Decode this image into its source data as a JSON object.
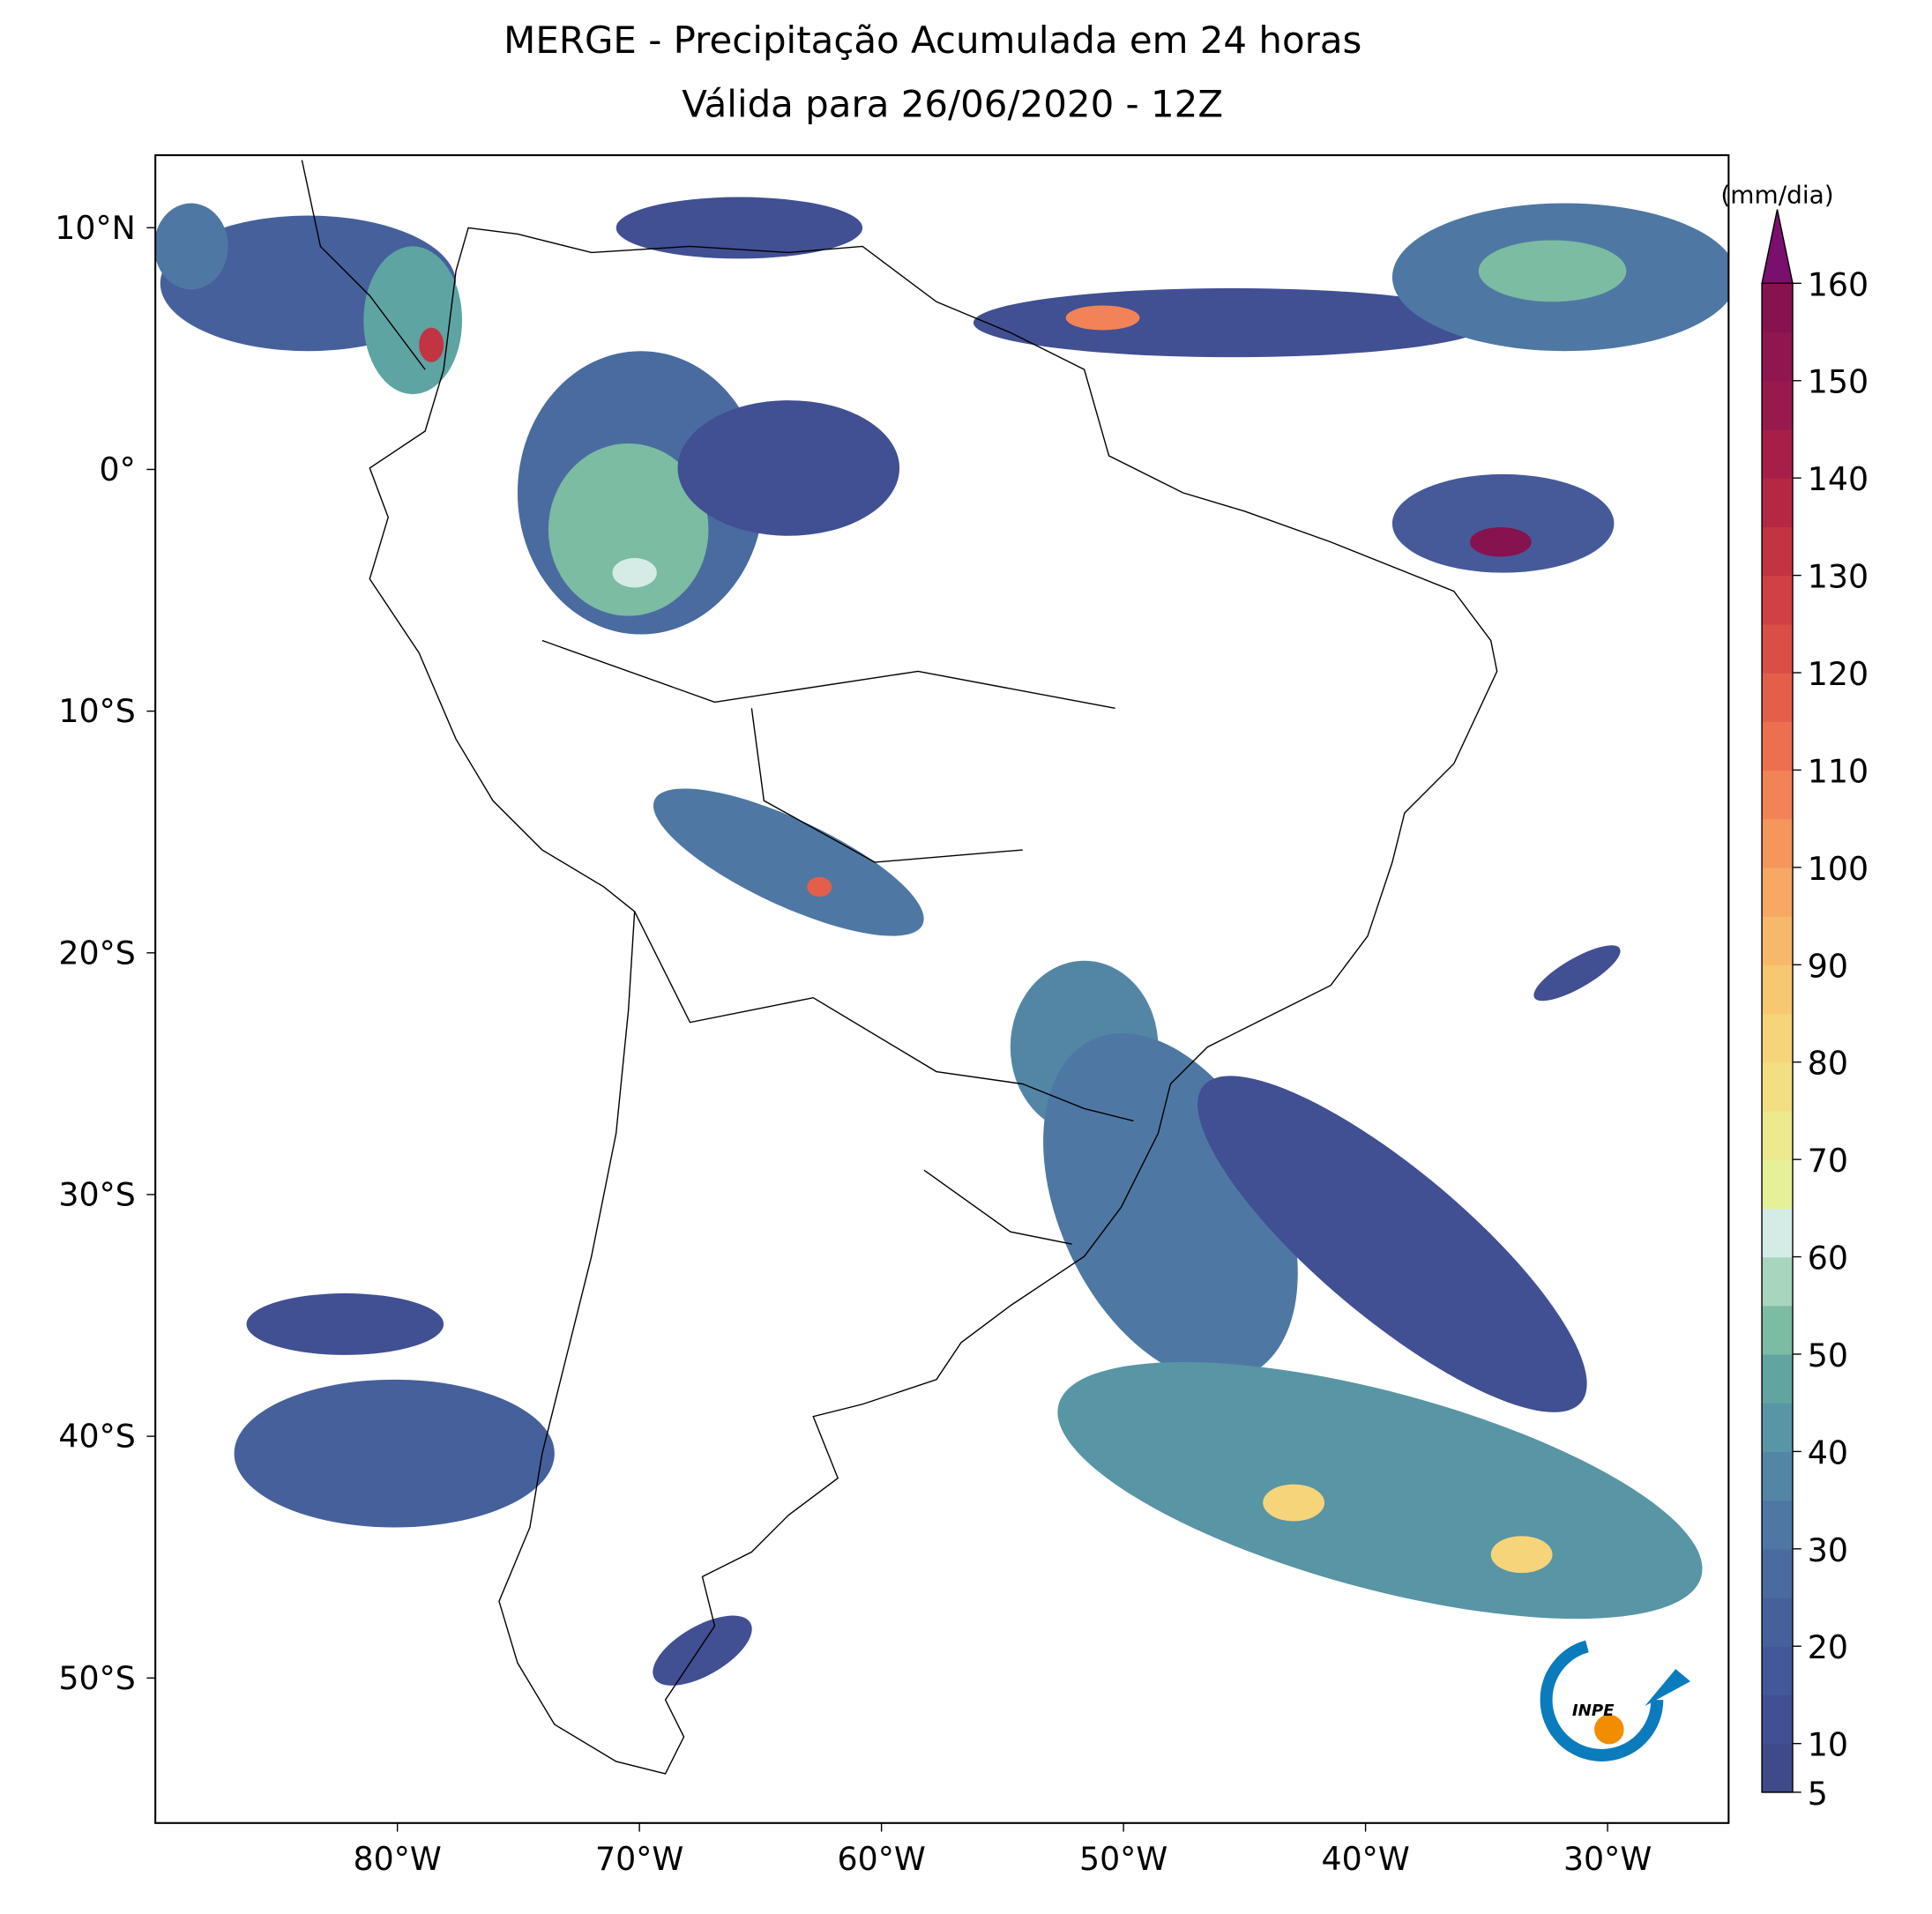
{
  "title": [
    "MERGE - Precipitação Acumulada em 24 horas",
    "Válida para 26/06/2020 - 12Z"
  ],
  "map": {
    "xlim": [
      -90,
      -25
    ],
    "ylim": [
      -56,
      13
    ],
    "xticks": [
      {
        "value": -80,
        "label": "80°W"
      },
      {
        "value": -70,
        "label": "70°W"
      },
      {
        "value": -60,
        "label": "60°W"
      },
      {
        "value": -50,
        "label": "50°W"
      },
      {
        "value": -40,
        "label": "40°W"
      },
      {
        "value": -30,
        "label": "30°W"
      }
    ],
    "yticks": [
      {
        "value": 10,
        "label": "10°N"
      },
      {
        "value": 0,
        "label": "0°"
      },
      {
        "value": -10,
        "label": "10°S"
      },
      {
        "value": -20,
        "label": "20°S"
      },
      {
        "value": -30,
        "label": "30°S"
      },
      {
        "value": -40,
        "label": "40°S"
      },
      {
        "value": -50,
        "label": "50°S"
      }
    ]
  },
  "colorbar": {
    "label": "(mm/dia)",
    "lim": [
      5,
      160
    ],
    "ticks": [
      5,
      10,
      20,
      30,
      40,
      50,
      60,
      70,
      80,
      90,
      100,
      110,
      120,
      130,
      140,
      150,
      160
    ],
    "colors": [
      "#3e4a89",
      "#414f93",
      "#435898",
      "#46609c",
      "#4a6ba0",
      "#4e78a3",
      "#5386a5",
      "#5895a5",
      "#62a5a0",
      "#7bbca2",
      "#a7d5bd",
      "#d5ebe5",
      "#e6f099",
      "#ede98e",
      "#f1df82",
      "#f5d47a",
      "#f7c771",
      "#f8b86a",
      "#f7a863",
      "#f5965c",
      "#f28356",
      "#ec704f",
      "#e45f49",
      "#da4f45",
      "#cf4142",
      "#c23442",
      "#b42843",
      "#a71f48",
      "#981a4d",
      "#8f164f",
      "#86134f"
    ],
    "extend_color": "#7a0f6e"
  },
  "logo": "INPE"
}
